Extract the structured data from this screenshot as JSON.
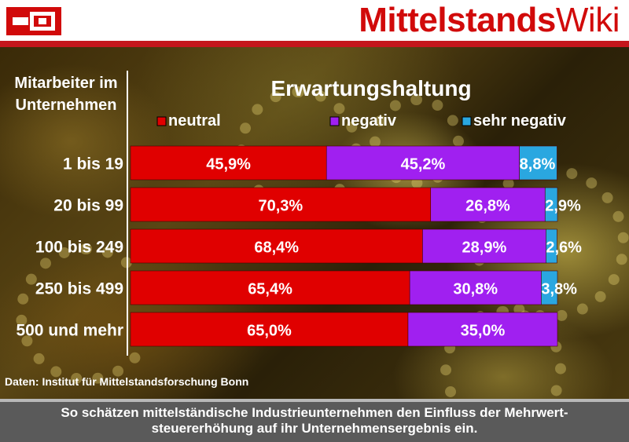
{
  "header": {
    "brand_bold": "Mittelstands",
    "brand_light": "Wiki"
  },
  "colors": {
    "brand_red": "#d10a0a",
    "neutral": "#e00000",
    "negativ": "#a020f0",
    "sehr_negativ": "#2aa7e0"
  },
  "chart_data": {
    "type": "bar",
    "orientation": "horizontal",
    "stacked": true,
    "title": "Erwartungshaltung",
    "ylabel": "Mitarbeiter im Unternehmen",
    "categories": [
      "1 bis 19",
      "20 bis 99",
      "100 bis 249",
      "250 bis 499",
      "500 und mehr"
    ],
    "series": [
      {
        "name": "neutral",
        "values": [
          45.9,
          70.3,
          68.4,
          65.4,
          65.0
        ],
        "labels": [
          "45,9%",
          "70,3%",
          "68,4%",
          "65,4%",
          "65,0%"
        ],
        "color": "#e00000"
      },
      {
        "name": "negativ",
        "values": [
          45.2,
          26.8,
          28.9,
          30.8,
          35.0
        ],
        "labels": [
          "45,2%",
          "26,8%",
          "28,9%",
          "30,8%",
          "35,0%"
        ],
        "color": "#a020f0"
      },
      {
        "name": "sehr negativ",
        "values": [
          8.8,
          2.9,
          2.6,
          3.8,
          0
        ],
        "labels": [
          "8,8%",
          "2,9%",
          "2,6%",
          "3,8%",
          ""
        ],
        "color": "#2aa7e0"
      }
    ],
    "xlim": [
      0,
      100
    ],
    "legend_position": "top",
    "grid": false
  },
  "source": "Daten: Institut für Mittelstandsforschung Bonn",
  "caption": "So schätzen mittelständische Industrieunternehmen den Einfluss der Mehrwert-steuererhöhung auf ihr Unternehmensergebnis ein."
}
